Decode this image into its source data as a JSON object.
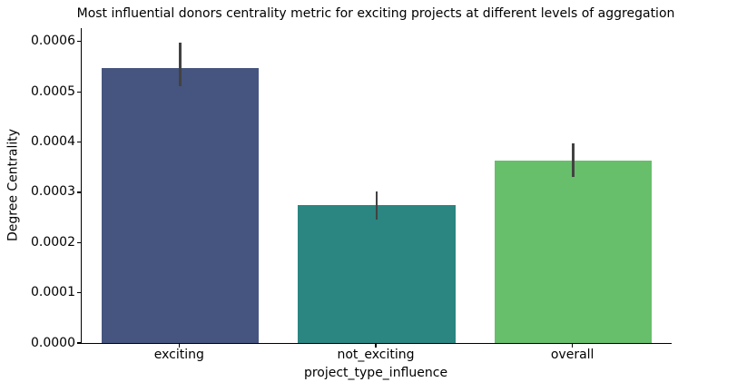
{
  "chart_data": {
    "type": "bar",
    "title": "Most influential donors centrality metric for exciting projects at different levels of aggregation",
    "xlabel": "project_type_influence",
    "ylabel": "Degree Centrality",
    "categories": [
      "exciting",
      "not_exciting",
      "overall"
    ],
    "values": [
      0.000548,
      0.000275,
      0.000363
    ],
    "error_low": [
      0.000511,
      0.000245,
      0.00033
    ],
    "error_high": [
      0.000599,
      0.000302,
      0.000398
    ],
    "bar_colors": [
      "#46557F",
      "#2B8580",
      "#67BE6B"
    ],
    "errorbar_color": "#424242",
    "ylim": [
      0,
      0.000627
    ],
    "yticks": [
      0,
      0.0001,
      0.0002,
      0.0003,
      0.0004,
      0.0005,
      0.0006
    ],
    "ytick_labels": [
      "0.0000",
      "0.0001",
      "0.0002",
      "0.0003",
      "0.0004",
      "0.0005",
      "0.0006"
    ],
    "grid": false,
    "legend": null,
    "spines": [
      "left",
      "bottom"
    ]
  }
}
